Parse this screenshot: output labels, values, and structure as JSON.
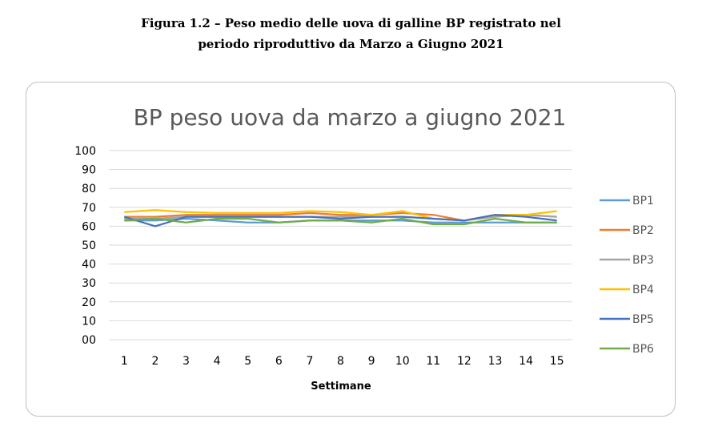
{
  "figure": {
    "caption_line1": "Figura 1.2 – Peso medio delle uova di galline BP registrato nel",
    "caption_line2": "periodo riproduttivo da Marzo a Giugno 2021"
  },
  "chart_data": {
    "type": "line",
    "title": "BP peso uova da marzo a giugno 2021",
    "xlabel": "Settimane",
    "ylabel": "",
    "x": [
      1,
      2,
      3,
      4,
      5,
      6,
      7,
      8,
      9,
      10,
      11,
      12,
      13,
      14,
      15
    ],
    "ylim": [
      0,
      100
    ],
    "yticks": [
      "00",
      "10",
      "20",
      "30",
      "40",
      "50",
      "60",
      "70",
      "80",
      "90",
      "100"
    ],
    "grid": true,
    "legend_position": "right",
    "series": [
      {
        "name": "BP1",
        "color": "#5b9bd5",
        "values": [
          63,
          63,
          64,
          63,
          62,
          62,
          63,
          63,
          63,
          63,
          62,
          62,
          62,
          62,
          62
        ]
      },
      {
        "name": "BP2",
        "color": "#ed7d31",
        "values": [
          65,
          65,
          66,
          66,
          66,
          66,
          67,
          66,
          66,
          67,
          66,
          63,
          66,
          66,
          65
        ]
      },
      {
        "name": "BP3",
        "color": "#a5a5a5",
        "values": [
          64,
          64,
          65,
          65,
          65,
          65,
          65,
          65,
          65,
          65,
          64,
          63,
          65,
          66,
          65
        ]
      },
      {
        "name": "BP4",
        "color": "#ffc000",
        "values": [
          67.5,
          68.5,
          67.5,
          67,
          67,
          67,
          68,
          67.5,
          66,
          68,
          64,
          63,
          66,
          66,
          68
        ]
      },
      {
        "name": "BP5",
        "color": "#4472c4",
        "values": [
          65,
          60,
          65,
          65,
          65,
          65,
          65,
          64,
          65,
          65,
          64,
          63,
          66,
          65,
          63
        ]
      },
      {
        "name": "BP6",
        "color": "#70ad47",
        "values": [
          63,
          64,
          62,
          64,
          64,
          62,
          63,
          63,
          62,
          64,
          61,
          61,
          64,
          62,
          62
        ]
      }
    ]
  }
}
